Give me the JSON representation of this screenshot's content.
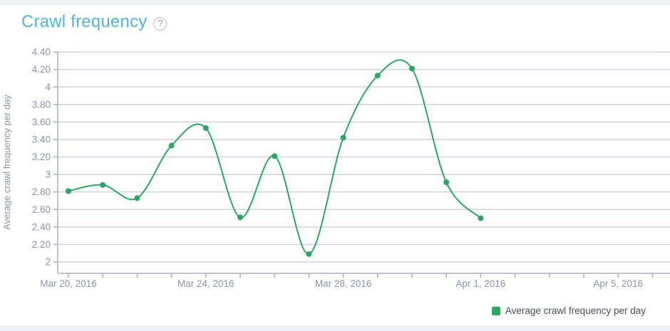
{
  "header": {
    "title": "Crawl frequency",
    "help_icon": "?"
  },
  "chart_data": {
    "type": "line",
    "title": "Crawl frequency",
    "xlabel": "",
    "ylabel": "Average crawl frequency per day",
    "categories": [
      "Mar 20, 2016",
      "Mar 21, 2016",
      "Mar 22, 2016",
      "Mar 23, 2016",
      "Mar 24, 2016",
      "Mar 25, 2016",
      "Mar 26, 2016",
      "Mar 27, 2016",
      "Mar 28, 2016",
      "Mar 29, 2016",
      "Mar 30, 2016",
      "Mar 31, 2016",
      "Apr 1, 2016"
    ],
    "series": [
      {
        "name": "Average crawl frequency per day",
        "values": [
          2.81,
          2.88,
          2.73,
          3.33,
          3.53,
          2.51,
          3.21,
          2.09,
          3.42,
          4.13,
          4.21,
          2.91,
          2.5
        ]
      }
    ],
    "ylim": [
      2.0,
      4.4
    ],
    "y_tick_labels": [
      "4.40",
      "4.20",
      "4",
      "3.80",
      "3.60",
      "3.40",
      "3.20",
      "3",
      "2.80",
      "2.60",
      "2.40",
      "2.20",
      "2"
    ],
    "x_tick_labels": [
      "Mar 20, 2016",
      "Mar 24, 2016",
      "Mar 28, 2016",
      "Apr 1, 2016",
      "Apr 5, 2016"
    ],
    "x_label_every_n_days": 4,
    "x_axis_total_tick_days": 18,
    "grid": true,
    "legend_position": "bottom-right",
    "curve": "spline",
    "colors": {
      "line": "#29a864",
      "marker": "#29a864",
      "gridline": "#cdd4dd",
      "axis_line": "#a8b0bd",
      "tick_label": "#8b95a5",
      "title": "#51b5e6",
      "legend_text": "#454d59"
    }
  },
  "legend": {
    "label": "Average crawl frequency per day"
  }
}
